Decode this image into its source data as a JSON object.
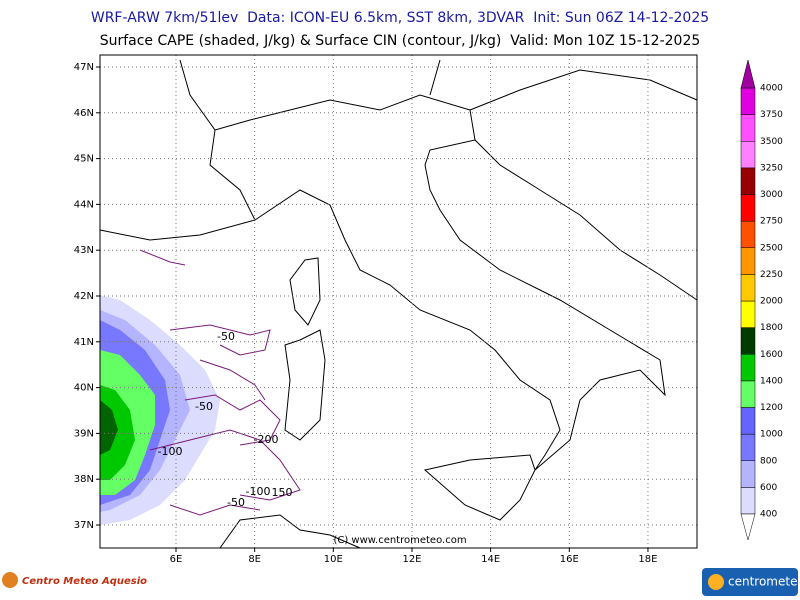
{
  "header": {
    "line1": "WRF-ARW 7km/51lev  Data: ICON-EU 6.5km, SST 8km, 3DVAR  Init: Sun 06Z 14-12-2025",
    "line2": "Surface CAPE (shaded, J/kg) & Surface CIN (contour, J/kg)  Valid: Mon 10Z 15-12-2025"
  },
  "lat_ticks": [
    {
      "value": 47,
      "label": "47N"
    },
    {
      "value": 46,
      "label": "46N"
    },
    {
      "value": 45,
      "label": "45N"
    },
    {
      "value": 44,
      "label": "44N"
    },
    {
      "value": 43,
      "label": "43N"
    },
    {
      "value": 42,
      "label": "42N"
    },
    {
      "value": 41,
      "label": "41N"
    },
    {
      "value": 40,
      "label": "40N"
    },
    {
      "value": 39,
      "label": "39N"
    },
    {
      "value": 38,
      "label": "38N"
    },
    {
      "value": 37,
      "label": "37N"
    }
  ],
  "lon_ticks": [
    {
      "value": 6,
      "label": "6E"
    },
    {
      "value": 8,
      "label": "8E"
    },
    {
      "value": 10,
      "label": "10E"
    },
    {
      "value": 12,
      "label": "12E"
    },
    {
      "value": 14,
      "label": "14E"
    },
    {
      "value": 16,
      "label": "16E"
    },
    {
      "value": 18,
      "label": "18E"
    }
  ],
  "colorbar": {
    "levels": [
      400,
      600,
      800,
      1000,
      1200,
      1400,
      1600,
      1800,
      2000,
      2250,
      2500,
      2750,
      3000,
      3250,
      3500,
      3750,
      4000
    ],
    "colors": [
      "#dcdcff",
      "#b4b4ff",
      "#7878ff",
      "#6464ff",
      "#64ff64",
      "#00c800",
      "#003c00",
      "#ffff00",
      "#ffc800",
      "#ff9600",
      "#ff5000",
      "#ff0000",
      "#960000",
      "#ff80ff",
      "#ff50ff",
      "#e000e0"
    ],
    "over_color": "#a000a0"
  },
  "contour_labels": [
    "-50",
    "-50",
    "-200",
    "-100",
    "-100",
    "150",
    "-50"
  ],
  "credit": "(C) www.centrometeo.com",
  "logos": {
    "left": "Centro Meteo Aquesio",
    "right": "centrometeo"
  }
}
